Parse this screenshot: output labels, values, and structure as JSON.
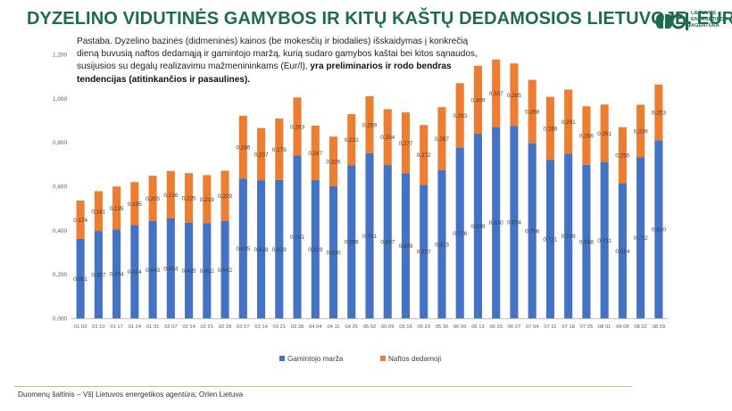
{
  "header": {
    "title": "DYZELINO VIDUTINĖS GAMYBOS IR KITŲ KAŠTŲ DEDAMOSIOS LIETUVOJE, EUR/l",
    "logo_lines": [
      "LIETUVOS",
      "ENERGETIKOS",
      "AGENTŪRA"
    ]
  },
  "note": {
    "text": "Pastaba. Dyzelino bazinės (didmeninės) kainos (be mokesčių ir biodalies) išskaidymas į konkrečią dieną buvusią naftos dedamąją ir gamintojo maržą, kurią sudaro gamybos kaštai bei kitos sąnaudos, susijusios su degalų realizavimu mažmenininkams (Eur/l), ",
    "bold": "yra preliminarios ir rodo bendras tendencijas (atitinkančios ir pasaulines)."
  },
  "footer": {
    "source": "Duomenų šaltinis – VšĮ Lietuvos energetikos agentūra; Orlen Lietuva"
  },
  "colors": {
    "margin": "#4472c4",
    "oil": "#ed7d31",
    "title": "#1e6b52"
  },
  "chart_data": {
    "type": "bar",
    "stacked": true,
    "categories": [
      "01 03",
      "01 10",
      "01 17",
      "01 24",
      "01 31",
      "02 07",
      "02 14",
      "02 21",
      "02 28",
      "03 07",
      "03 14",
      "03 21",
      "03 28",
      "04 04",
      "04 11",
      "04 25",
      "05 02",
      "05 09",
      "05 16",
      "05 23",
      "05 30",
      "06 06",
      "06 13",
      "06 20",
      "06 27",
      "07 04",
      "07 11",
      "07 18",
      "07 25",
      "08 01",
      "08 08",
      "08 22",
      "08 29"
    ],
    "series": [
      {
        "name": "Gamintojo marža",
        "values": [
          0.361,
          0.397,
          0.404,
          0.424,
          0.443,
          0.454,
          0.435,
          0.432,
          0.442,
          0.635,
          0.628,
          0.629,
          0.741,
          0.629,
          0.6,
          0.696,
          0.751,
          0.697,
          0.659,
          0.607,
          0.673,
          0.776,
          0.839,
          0.87,
          0.874,
          0.796,
          0.721,
          0.749,
          0.698,
          0.711,
          0.614,
          0.732,
          0.81
        ],
        "labels": [
          "0,361",
          "0,397",
          "0,404",
          "0,424",
          "0,443",
          "0,454",
          "0,435",
          "0,432",
          "0,442",
          "0,635",
          "0,628",
          "0,629",
          "0,741",
          "0,629",
          "0,600",
          "0,696",
          "0,751",
          "0,697",
          "0,659",
          "0,607",
          "0,673",
          "0,776",
          "0,839",
          "0,870",
          "0,874",
          "0,796",
          "0,721",
          "0,749",
          "0,698",
          "0,711",
          "0,614",
          "0,732",
          "0,810"
        ]
      },
      {
        "name": "Naftos dedamoji",
        "values": [
          0.174,
          0.181,
          0.195,
          0.195,
          0.205,
          0.216,
          0.225,
          0.219,
          0.229,
          0.286,
          0.237,
          0.279,
          0.263,
          0.247,
          0.226,
          0.232,
          0.259,
          0.254,
          0.277,
          0.272,
          0.287,
          0.293,
          0.309,
          0.307,
          0.285,
          0.288,
          0.286,
          0.291,
          0.266,
          0.261,
          0.255,
          0.239,
          0.253
        ],
        "labels": [
          "0,174",
          "0,181",
          "0,195",
          "0,195",
          "0,205",
          "0,216",
          "0,225",
          "0,219",
          "0,229",
          "0,286",
          "0,237",
          "0,279",
          "0,263",
          "0,247",
          "0,226",
          "0,232",
          "0,259",
          "0,254",
          "0,277",
          "0,272",
          "0,287",
          "0,293",
          "0,309",
          "0,307",
          "0,285",
          "0,288",
          "0,286",
          "0,291",
          "0,266",
          "0,261",
          "0,255",
          "0,239",
          "0,253"
        ]
      }
    ],
    "ylim": [
      0,
      1.2
    ],
    "yticks": [
      0,
      0.2,
      0.4,
      0.6,
      0.8,
      1.0,
      1.2
    ],
    "ytick_labels": [
      "0,000",
      "0,200",
      "0,400",
      "0,600",
      "0,800",
      "1,000",
      "1,200"
    ],
    "grid": false,
    "legend": "bottom-center"
  }
}
